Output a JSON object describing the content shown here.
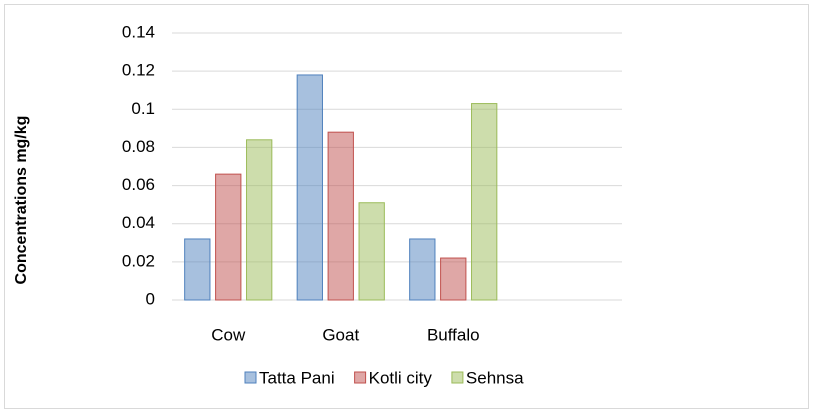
{
  "chart_data": {
    "type": "bar",
    "ylabel": "Concentrations mg/kg",
    "categories": [
      "Cow",
      "Goat",
      "Buffalo",
      null
    ],
    "series": [
      {
        "name": "Tatta Pani",
        "color": "#4f81bd",
        "values": [
          0.032,
          0.118,
          0.032,
          null
        ]
      },
      {
        "name": "Kotli city",
        "color": "#c0504d",
        "values": [
          0.066,
          0.088,
          0.022,
          null
        ]
      },
      {
        "name": "Sehnsa",
        "color": "#9bbb59",
        "values": [
          0.084,
          0.051,
          0.103,
          null
        ]
      }
    ],
    "ylim": [
      0,
      0.14
    ],
    "yticks": [
      0,
      0.02,
      0.04,
      0.06,
      0.08,
      0.1,
      0.12,
      0.14
    ],
    "grid": true,
    "legend": "bottom"
  }
}
